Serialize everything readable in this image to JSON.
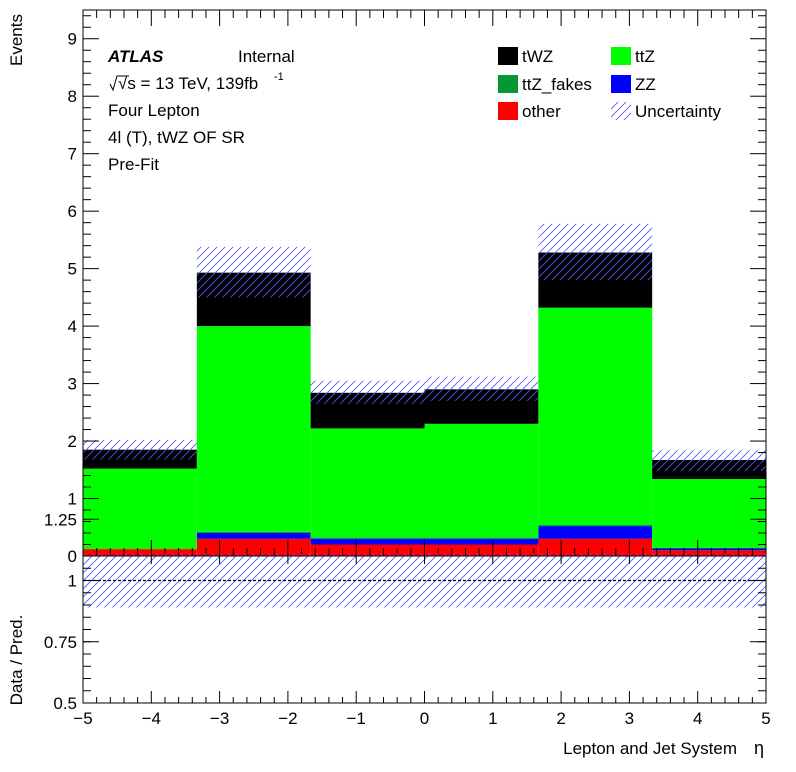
{
  "chart_data": [
    {
      "type": "bar",
      "stacked": true,
      "title": "",
      "ylabel": "Events",
      "ylim": [
        0,
        9.5
      ],
      "yticks": [
        "0",
        "1",
        "2",
        "3",
        "4",
        "5",
        "6",
        "7",
        "8",
        "9"
      ],
      "x_edges": [
        -5,
        -3.3333,
        -1.6667,
        0,
        1.6667,
        3.3333,
        5
      ],
      "series": [
        {
          "name": "other",
          "color": "#ff0000",
          "values": [
            0.12,
            0.3,
            0.2,
            0.2,
            0.3,
            0.1
          ]
        },
        {
          "name": "ZZ",
          "color": "#0000ff",
          "values": [
            0.0,
            0.1,
            0.1,
            0.1,
            0.22,
            0.03
          ]
        },
        {
          "name": "ttZ_fakes",
          "color": "#009933",
          "values": [
            0.0,
            0.02,
            0.02,
            0.02,
            0.02,
            0.01
          ]
        },
        {
          "name": "ttZ",
          "color": "#00ff00",
          "values": [
            1.4,
            3.58,
            1.9,
            1.98,
            3.78,
            1.2
          ]
        },
        {
          "name": "tWZ",
          "color": "#000000",
          "values": [
            0.33,
            0.93,
            0.62,
            0.6,
            0.96,
            0.33
          ]
        }
      ],
      "uncertainty": {
        "name": "Uncertainty",
        "low": [
          1.68,
          4.5,
          2.65,
          2.7,
          4.8,
          1.48
        ],
        "high": [
          2.02,
          5.38,
          3.05,
          3.12,
          5.78,
          1.84
        ]
      },
      "annotations": {
        "experiment": "ATLAS",
        "status": "Internal",
        "energy_lumi": "√s = 13 TeV, 139fb",
        "lumi_exp": "-1",
        "channel": "Four Lepton",
        "region": "4l (T), tWZ OF SR",
        "stage": "Pre-Fit"
      },
      "legend": {
        "placement": "top-right",
        "entries": [
          {
            "label": "tWZ",
            "color": "#000000"
          },
          {
            "label": "ttZ",
            "color": "#00ff00"
          },
          {
            "label": "ttZ_fakes",
            "color": "#009933"
          },
          {
            "label": "ZZ",
            "color": "#0000ff"
          },
          {
            "label": "other",
            "color": "#ff0000"
          },
          {
            "label": "Uncertainty",
            "color": "hatch"
          }
        ]
      }
    },
    {
      "type": "line",
      "ylabel": "Data / Pred.",
      "ylim": [
        0.5,
        1.1
      ],
      "yticks": [
        "0.5",
        "0.75",
        "1",
        "1.25"
      ],
      "ytick_values": [
        0.5,
        0.75,
        1.0,
        1.25
      ],
      "reference_line": 1.0,
      "uncertainty_band": [
        0.89,
        1.11
      ],
      "xlim": [
        -5,
        5
      ],
      "xticks": [
        "−5",
        "−4",
        "−3",
        "−2",
        "−1",
        "0",
        "1",
        "2",
        "3",
        "4",
        "5"
      ],
      "xtick_values": [
        -5,
        -4,
        -3,
        -2,
        -1,
        0,
        1,
        2,
        3,
        4,
        5
      ],
      "xlabel": "Lepton and Jet System",
      "xlabel_symbol": "η"
    }
  ]
}
